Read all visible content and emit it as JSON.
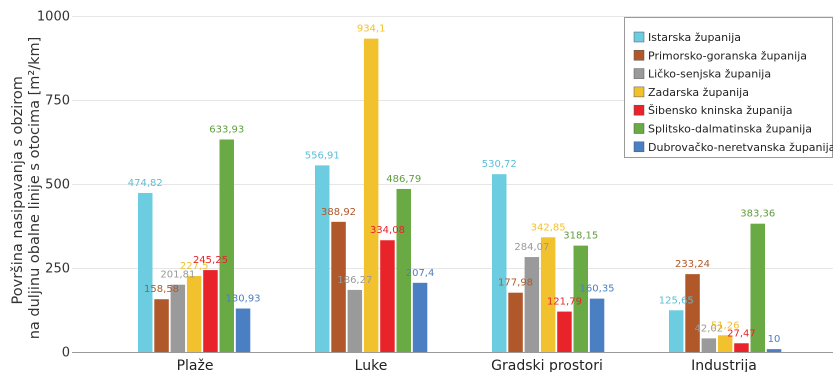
{
  "chart_data": {
    "type": "bar",
    "ylabel_lines": [
      "Površina nasipavanja s obzirom",
      "na duljinu obalne linije s otocima [m²/km]"
    ],
    "categories": [
      "Plaže",
      "Luke",
      "Gradski prostori",
      "Industrija"
    ],
    "ylim": [
      0,
      1000
    ],
    "yticks": [
      "0",
      "250",
      "500",
      "750",
      "1000"
    ],
    "ytick_values": [
      0,
      250,
      500,
      750,
      1000
    ],
    "grid": true,
    "legend_position": "top-right",
    "series": [
      {
        "name": "Istarska županija",
        "color": "#6ccde0",
        "label_color": "#5bbfd6",
        "values": [
          474.82,
          556.91,
          530.72,
          125.65
        ],
        "labels": [
          "474,82",
          "556,91",
          "530,72",
          "125,65"
        ]
      },
      {
        "name": "Primorsko-goranska županija",
        "color": "#b0582a",
        "label_color": "#b0582a",
        "values": [
          158.58,
          388.92,
          177.98,
          233.24
        ],
        "labels": [
          "158,58",
          "388,92",
          "177,98",
          "233,24"
        ]
      },
      {
        "name": "Ličko-senjska županija",
        "color": "#9a9a9a",
        "label_color": "#9a9a9a",
        "values": [
          201.81,
          186.27,
          284.07,
          42.02
        ],
        "labels": [
          "201,81",
          "186,27",
          "284,07",
          "42,02"
        ]
      },
      {
        "name": "Zadarska županija",
        "color": "#f2c12e",
        "label_color": "#f2c12e",
        "values": [
          227.5,
          934.1,
          342.85,
          51.26
        ],
        "labels": [
          "227,5",
          "934,1",
          "342,85",
          "51,26"
        ]
      },
      {
        "name": "Šibensko kninska županija",
        "color": "#e8232a",
        "label_color": "#e8232a",
        "values": [
          245.25,
          334.08,
          121.79,
          27.47
        ],
        "labels": [
          "245,25",
          "334,08",
          "121,79",
          "27,47"
        ]
      },
      {
        "name": "Splitsko-dalmatinska županija",
        "color": "#6aaa45",
        "label_color": "#5f9e3d",
        "values": [
          633.93,
          486.79,
          318.15,
          383.36
        ],
        "labels": [
          "633,93",
          "486,79",
          "318,15",
          "383,36"
        ]
      },
      {
        "name": "Dubrovačko-neretvanska županija",
        "color": "#4a7fc4",
        "label_color": "#4a7fc4",
        "values": [
          130.93,
          207.4,
          160.35,
          10
        ],
        "labels": [
          "130,93",
          "207,4",
          "160,35",
          "10"
        ]
      }
    ]
  }
}
